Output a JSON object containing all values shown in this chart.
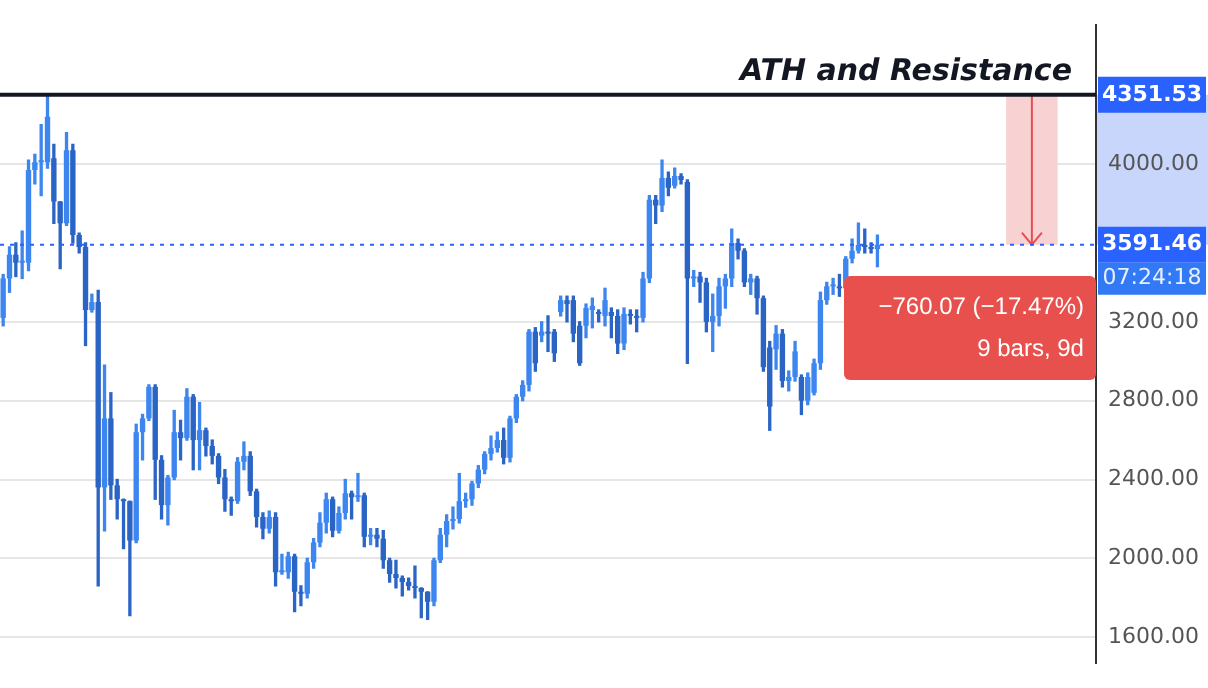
{
  "chart_data": {
    "type": "candlestick",
    "colors": [
      "#3d86f0",
      "#3d86f0",
      "#2a64c4",
      "#3d86f0",
      "#3d86f0",
      "#3d86f0",
      "#3d86f0",
      "#3d86f0",
      "#2a64c4",
      "#2a64c4",
      "#3d86f0",
      "#2a64c4",
      "#2a64c4",
      "#2a64c4",
      "#3d86f0",
      "#2a64c4",
      "#3d86f0",
      "#2a64c4",
      "#2a64c4",
      "#2a64c4",
      "#2a64c4",
      "#3d86f0",
      "#3d86f0",
      "#3d86f0",
      "#2a64c4",
      "#2a64c4",
      "#3d86f0",
      "#3d86f0",
      "#2a64c4",
      "#3d86f0",
      "#2a64c4",
      "#3d86f0",
      "#2a64c4",
      "#2a64c4",
      "#2a64c4",
      "#2a64c4",
      "#2a64c4",
      "#3d86f0",
      "#3d86f0",
      "#2a64c4",
      "#2a64c4",
      "#2a64c4",
      "#3d86f0",
      "#2a64c4",
      "#3d86f0",
      "#3d86f0",
      "#2a64c4",
      "#2a64c4",
      "#3d86f0",
      "#3d86f0",
      "#3d86f0",
      "#3d86f0",
      "#2a64c4",
      "#3d86f0",
      "#3d86f0",
      "#2a64c4",
      "#3d86f0",
      "#2a64c4",
      "#3d86f0",
      "#2a64c4",
      "#2a64c4",
      "#2a64c4",
      "#2a64c4",
      "#2a64c4",
      "#2a64c4",
      "#2a64c4",
      "#2a64c4",
      "#2a64c4",
      "#3d86f0",
      "#3d86f0",
      "#3d86f0",
      "#3d86f0",
      "#3d86f0",
      "#3d86f0",
      "#3d86f0",
      "#3d86f0",
      "#3d86f0",
      "#3d86f0",
      "#3d86f0",
      "#2a64c4",
      "#3d86f0",
      "#3d86f0",
      "#3d86f0",
      "#3d86f0",
      "#2a64c4",
      "#3d86f0",
      "#2a64c4",
      "#2a64c4",
      "#3d86f0",
      "#2a64c4",
      "#2a64c4",
      "#2a64c4",
      "#3d86f0",
      "#3d86f0",
      "#2a64c4",
      "#3d86f0",
      "#2a64c4",
      "#2a64c4",
      "#3d86f0",
      "#2a64c4",
      "#2a64c4",
      "#3d86f0",
      "#3d86f0",
      "#2a64c4",
      "#3d86f0",
      "#2a64c4",
      "#3d86f0",
      "#2a64c4",
      "#2a64c4",
      "#3d86f0",
      "#2a64c4",
      "#2a64c4",
      "#3d86f0",
      "#3d86f0",
      "#3d86f0",
      "#3d86f0",
      "#2a64c4",
      "#2a64c4",
      "#3d86f0",
      "#2a64c4",
      "#2a64c4",
      "#2a64c4",
      "#3d86f0",
      "#2a64c4",
      "#3d86f0",
      "#3d86f0",
      "#2a64c4",
      "#3d86f0",
      "#3d86f0",
      "#3d86f0",
      "#3d86f0",
      "#3d86f0",
      "#2a64c4",
      "#3d86f0",
      "#3d86f0",
      "#3d86f0",
      "#2a64c4",
      "#2a64c4",
      "#3d86f0",
      null,
      null,
      null,
      null,
      null,
      null,
      null,
      null,
      null,
      null,
      null,
      null,
      null,
      null,
      null,
      null,
      null,
      null,
      null,
      null,
      null,
      null,
      null,
      null,
      null,
      null,
      null,
      null,
      null,
      null,
      null,
      null,
      null,
      null
    ],
    "categories": [
      null,
      null,
      null,
      null,
      null,
      null,
      null,
      null,
      null,
      null,
      null,
      null,
      null,
      null,
      null,
      null,
      null,
      null,
      null,
      null,
      null,
      null,
      null,
      null,
      null,
      null,
      null,
      null,
      null,
      null,
      null,
      null,
      null,
      null,
      null,
      null,
      null,
      null,
      null,
      null,
      null,
      null,
      null,
      null,
      null,
      null,
      null,
      null,
      null,
      null,
      null,
      null,
      null,
      null,
      null,
      null,
      null,
      null,
      null,
      null,
      null,
      null,
      null,
      null,
      null,
      null,
      null,
      null,
      null,
      null,
      null,
      null,
      null,
      null,
      null,
      null,
      null,
      null,
      null,
      null,
      null,
      null,
      null,
      null,
      null,
      null,
      null,
      null,
      null,
      null,
      null,
      null,
      null,
      null,
      null,
      null,
      null,
      null,
      null,
      null,
      null,
      null,
      null,
      null,
      null,
      null,
      null,
      null,
      null,
      null,
      null,
      null,
      null,
      null,
      null,
      null,
      null,
      null,
      null,
      null,
      null,
      null,
      null,
      null,
      null,
      null,
      null,
      null,
      null,
      null,
      null,
      null,
      null,
      null,
      null,
      null,
      null,
      null,
      null,
      null,
      null,
      null,
      null,
      null,
      null,
      null,
      null,
      null,
      null,
      null,
      null,
      null,
      null,
      null,
      null,
      null,
      null,
      null,
      null,
      null,
      null,
      null,
      null,
      null,
      null,
      null,
      null,
      null,
      null,
      null,
      null,
      null,
      null
    ],
    "ohlc": [
      [
        3220,
        3440,
        3180,
        3420
      ],
      [
        3420,
        3580,
        3350,
        3540
      ],
      [
        3540,
        3600,
        3430,
        3500
      ],
      [
        3500,
        3660,
        3420,
        3500
      ],
      [
        3500,
        4020,
        3460,
        3970
      ],
      [
        3970,
        4050,
        3900,
        4010
      ],
      [
        4010,
        4200,
        3840,
        4010
      ],
      [
        4010,
        4350,
        3980,
        4240
      ],
      [
        4030,
        4100,
        3700,
        3810
      ],
      [
        3810,
        3810,
        3470,
        3700
      ],
      [
        3700,
        4160,
        3690,
        4070
      ],
      [
        4070,
        4100,
        3600,
        3640
      ],
      [
        3640,
        3650,
        3550,
        3580
      ],
      [
        3580,
        3600,
        3080,
        3260
      ],
      [
        3260,
        3340,
        3250,
        3300
      ],
      [
        3300,
        3360,
        1860,
        2360
      ],
      [
        2360,
        2980,
        2140,
        2710
      ],
      [
        2710,
        2840,
        2300,
        2370
      ],
      [
        2370,
        2400,
        2200,
        2300
      ],
      [
        2300,
        2300,
        2050,
        2290
      ],
      [
        2290,
        2290,
        1710,
        2090
      ],
      [
        2090,
        2680,
        2080,
        2640
      ],
      [
        2640,
        2730,
        2500,
        2710
      ],
      [
        2710,
        2880,
        2700,
        2870
      ],
      [
        2870,
        2880,
        2300,
        2500
      ],
      [
        2500,
        2520,
        2200,
        2270
      ],
      [
        2270,
        2420,
        2170,
        2410
      ],
      [
        2410,
        2750,
        2400,
        2640
      ],
      [
        2640,
        2700,
        2500,
        2610
      ],
      [
        2610,
        2860,
        2600,
        2820
      ],
      [
        2820,
        2830,
        2450,
        2600
      ],
      [
        2600,
        2790,
        2450,
        2650
      ],
      [
        2650,
        2660,
        2520,
        2570
      ],
      [
        2570,
        2600,
        2480,
        2520
      ],
      [
        2520,
        2530,
        2380,
        2410
      ],
      [
        2410,
        2450,
        2240,
        2300
      ],
      [
        2300,
        2310,
        2220,
        2290
      ],
      [
        2290,
        2510,
        2280,
        2490
      ],
      [
        2490,
        2590,
        2450,
        2520
      ],
      [
        2520,
        2540,
        2320,
        2340
      ],
      [
        2340,
        2350,
        2160,
        2210
      ],
      [
        2210,
        2230,
        2100,
        2150
      ],
      [
        2150,
        2240,
        2130,
        2210
      ],
      [
        2210,
        2230,
        1860,
        1930
      ],
      [
        1930,
        2020,
        1920,
        1930
      ],
      [
        1930,
        2030,
        1900,
        2010
      ],
      [
        2010,
        2020,
        1730,
        1830
      ],
      [
        1830,
        1860,
        1760,
        1820
      ],
      [
        1820,
        2000,
        1800,
        1980
      ],
      [
        1980,
        2100,
        1950,
        2080
      ],
      [
        2080,
        2230,
        2060,
        2180
      ],
      [
        2180,
        2330,
        2130,
        2300
      ],
      [
        2300,
        2310,
        2110,
        2140
      ],
      [
        2140,
        2260,
        2130,
        2230
      ],
      [
        2230,
        2400,
        2200,
        2330
      ],
      [
        2330,
        2340,
        2200,
        2310
      ],
      [
        2310,
        2430,
        2290,
        2320
      ],
      [
        2320,
        2330,
        2060,
        2110
      ],
      [
        2110,
        2150,
        2070,
        2120
      ],
      [
        2120,
        2150,
        2060,
        2100
      ],
      [
        2100,
        2140,
        1950,
        1990
      ],
      [
        1990,
        2000,
        1880,
        1920
      ],
      [
        1920,
        1990,
        1850,
        1900
      ],
      [
        1900,
        1910,
        1810,
        1880
      ],
      [
        1880,
        1900,
        1840,
        1860
      ],
      [
        1860,
        1960,
        1800,
        1850
      ],
      [
        1850,
        1850,
        1700,
        1830
      ],
      [
        1830,
        1830,
        1690,
        1780
      ],
      [
        1780,
        2000,
        1760,
        1990
      ],
      [
        1990,
        2150,
        1980,
        2120
      ],
      [
        2120,
        2220,
        2060,
        2190
      ],
      [
        2190,
        2260,
        2150,
        2200
      ],
      [
        2200,
        2430,
        2180,
        2290
      ],
      [
        2290,
        2330,
        2260,
        2300
      ],
      [
        2300,
        2390,
        2270,
        2380
      ],
      [
        2380,
        2470,
        2360,
        2450
      ],
      [
        2450,
        2540,
        2430,
        2530
      ],
      [
        2530,
        2620,
        2500,
        2560
      ],
      [
        2560,
        2640,
        2540,
        2600
      ],
      [
        2600,
        2660,
        2480,
        2510
      ],
      [
        2510,
        2720,
        2490,
        2710
      ],
      [
        2710,
        2830,
        2690,
        2820
      ],
      [
        2820,
        2900,
        2800,
        2880
      ],
      [
        2880,
        3160,
        2850,
        3150
      ],
      [
        3150,
        3170,
        2950,
        2990
      ],
      [
        3130,
        3200,
        3100,
        3150
      ],
      [
        3150,
        3230,
        3050,
        3140
      ],
      [
        3150,
        3160,
        3000,
        3040
      ],
      [
        3250,
        3330,
        3230,
        3310
      ],
      [
        3310,
        3330,
        3200,
        3290
      ],
      [
        3310,
        3330,
        3100,
        3140
      ],
      [
        3180,
        3200,
        2980,
        2990
      ],
      [
        3180,
        3290,
        3120,
        3270
      ],
      [
        3260,
        3320,
        3170,
        3280
      ],
      [
        3250,
        3260,
        3200,
        3240
      ],
      [
        3230,
        3370,
        3180,
        3310
      ],
      [
        3250,
        3270,
        3120,
        3230
      ],
      [
        3230,
        3260,
        3040,
        3090
      ],
      [
        3090,
        3270,
        3060,
        3240
      ],
      [
        3240,
        3260,
        3190,
        3230
      ],
      [
        3230,
        3260,
        3150,
        3220
      ],
      [
        3220,
        3450,
        3200,
        3420
      ],
      [
        3420,
        3840,
        3400,
        3820
      ],
      [
        3820,
        3840,
        3700,
        3790
      ],
      [
        3790,
        4020,
        3760,
        3930
      ],
      [
        3930,
        3960,
        3840,
        3880
      ],
      [
        3890,
        3980,
        3880,
        3940
      ],
      [
        3940,
        3950,
        3900,
        3920
      ],
      [
        3910,
        3920,
        2990,
        3420
      ],
      [
        3420,
        3460,
        3380,
        3430
      ],
      [
        3430,
        3450,
        3300,
        3400
      ],
      [
        3400,
        3420,
        3150,
        3200
      ],
      [
        3200,
        3340,
        3050,
        3230
      ],
      [
        3230,
        3420,
        3180,
        3380
      ],
      [
        3380,
        3440,
        3270,
        3420
      ],
      [
        3420,
        3670,
        3380,
        3600
      ],
      [
        3600,
        3620,
        3520,
        3560
      ],
      [
        3560,
        3570,
        3380,
        3400
      ],
      [
        3400,
        3440,
        3340,
        3420
      ],
      [
        3420,
        3430,
        3240,
        3320
      ],
      [
        3320,
        3330,
        2950,
        2970
      ],
      [
        3070,
        3100,
        2650,
        2770
      ],
      [
        3060,
        3180,
        2960,
        3140
      ],
      [
        3140,
        3160,
        2870,
        2900
      ],
      [
        2900,
        2950,
        2850,
        2920
      ],
      [
        2920,
        3100,
        2900,
        3050
      ],
      [
        2920,
        2930,
        2730,
        2800
      ],
      [
        2800,
        2940,
        2780,
        2920
      ],
      [
        2840,
        3010,
        2830,
        2990
      ],
      [
        2990,
        3350,
        2960,
        3310
      ],
      [
        3310,
        3400,
        3290,
        3380
      ],
      [
        3380,
        3420,
        3340,
        3380
      ],
      [
        3380,
        3440,
        3330,
        3370
      ],
      [
        3370,
        3530,
        3360,
        3520
      ],
      [
        3520,
        3620,
        3500,
        3560
      ],
      [
        3560,
        3700,
        3550,
        3590
      ],
      [
        3590,
        3670,
        3550,
        3580
      ],
      [
        3580,
        3600,
        3550,
        3570
      ],
      [
        3570,
        3640,
        3480,
        3591.46
      ],
      null,
      null,
      null,
      null,
      null,
      null,
      null,
      null,
      null,
      null,
      null,
      null,
      null,
      null,
      null,
      null,
      null,
      null,
      null,
      null,
      null,
      null,
      null,
      null,
      null,
      null,
      null,
      null,
      null,
      null,
      null,
      null,
      null,
      null
    ],
    "ylim": [
      1470,
      4705
    ],
    "yticks": [
      {
        "value": 1600,
        "label": "1600.00"
      },
      {
        "value": 2000,
        "label": "2000.00"
      },
      {
        "value": 2400,
        "label": "2400.00"
      },
      {
        "value": 2800,
        "label": "2800.00"
      },
      {
        "value": 3200,
        "label": "3200.00"
      },
      {
        "value": 4000,
        "label": "4000.00"
      }
    ],
    "grid": "y",
    "legend": false,
    "tick_labels": "y",
    "ref_lines": [
      {
        "axis": "y",
        "value": 4351.53,
        "label": "ATH and Resistance",
        "color": "#131722"
      },
      {
        "axis": "y",
        "value": 3591.46,
        "color": "#2962ff",
        "line_style": "dotted"
      }
    ],
    "bands": [
      {
        "axis": "y",
        "from": 3591.46,
        "to": 4351.53,
        "color": "#f8d2d2"
      }
    ],
    "annotations": [
      "4351.53",
      "3591.46",
      "07:24:18",
      "−760.07 (−17.47%)",
      "9 bars, 9d"
    ]
  }
}
